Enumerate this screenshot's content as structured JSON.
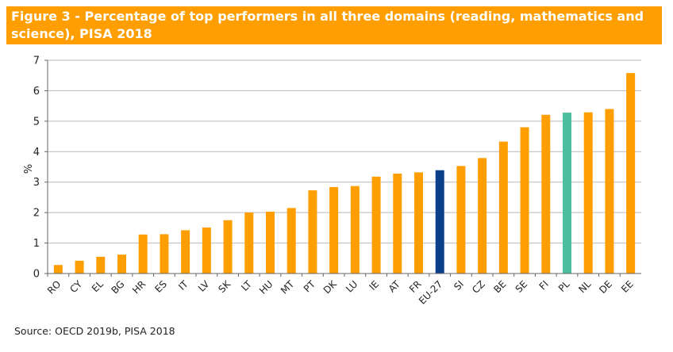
{
  "header": {
    "title": "Figure 3 - Percentage of top performers in all three domains (reading, mathematics and science), PISA 2018"
  },
  "footer": {
    "source": "Source: OECD 2019b, PISA 2018"
  },
  "colors": {
    "default_bar": "#ff9e00",
    "eu_bar": "#0b3f8a",
    "pl_bar": "#4dbf9e",
    "grid": "#b8b8b8",
    "title_bg": "#ff9e00"
  },
  "chart_data": {
    "type": "bar",
    "ylabel": "%",
    "ylim": [
      0,
      7
    ],
    "yticks": [
      0,
      1,
      2,
      3,
      4,
      5,
      6,
      7
    ],
    "grid": true,
    "categories": [
      "RO",
      "CY",
      "EL",
      "BG",
      "HR",
      "ES",
      "IT",
      "LV",
      "SK",
      "LT",
      "HU",
      "MT",
      "PT",
      "DK",
      "LU",
      "IE",
      "AT",
      "FR",
      "EU-27",
      "SI",
      "CZ",
      "BE",
      "SE",
      "FI",
      "PL",
      "NL",
      "DE",
      "EE"
    ],
    "values": [
      0.28,
      0.42,
      0.55,
      0.62,
      1.28,
      1.29,
      1.42,
      1.51,
      1.75,
      2.0,
      2.03,
      2.15,
      2.73,
      2.84,
      2.87,
      3.18,
      3.28,
      3.32,
      3.39,
      3.53,
      3.79,
      4.33,
      4.8,
      5.21,
      5.28,
      5.29,
      5.4,
      6.58
    ],
    "highlights": {
      "EU-27": "eu_bar",
      "PL": "pl_bar"
    }
  }
}
